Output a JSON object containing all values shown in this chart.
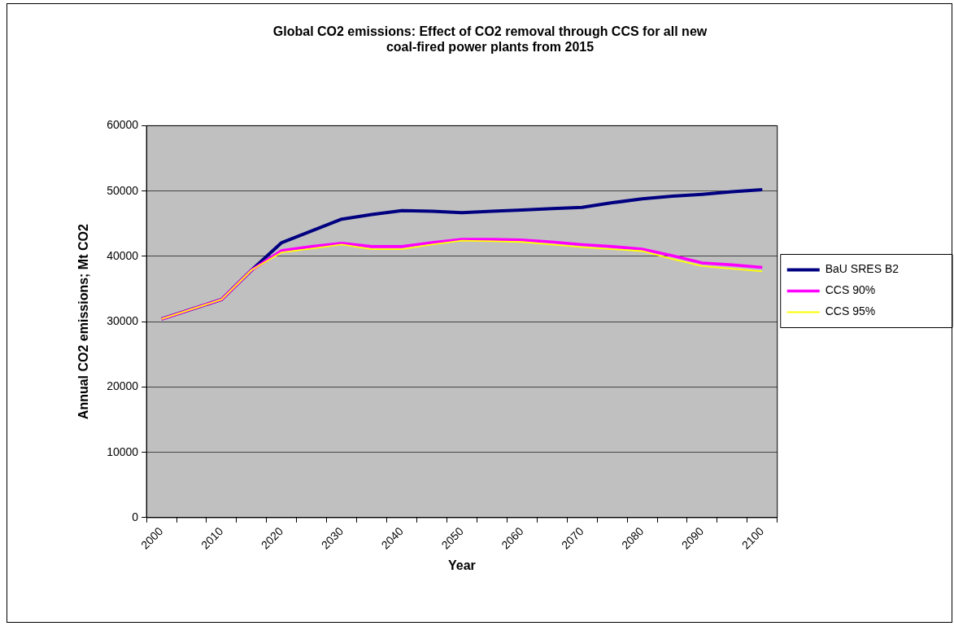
{
  "chart_data": {
    "type": "line",
    "title": "Global CO2 emissions: Effect of CO2 removal through CCS for all new coal-fired power plants from 2015",
    "xlabel": "Year",
    "ylabel": "Annual CO2 emissions; Mt CO2",
    "categories": [
      "2000",
      null,
      "2010",
      null,
      "2020",
      null,
      "2030",
      null,
      "2040",
      null,
      "2050",
      null,
      "2060",
      null,
      "2070",
      null,
      "2080",
      null,
      "2090",
      null,
      "2100"
    ],
    "series": [
      {
        "name": "BaU SRES B2",
        "color": "#000080",
        "values": [
          30400,
          31900,
          33400,
          37900,
          42100,
          43900,
          45700,
          46400,
          47000,
          46900,
          46700,
          46900,
          47100,
          47300,
          47500,
          48200,
          48800,
          49200,
          49500,
          49900,
          50200
        ]
      },
      {
        "name": "CCS 90%",
        "color": "#ff00ff",
        "values": [
          30400,
          31900,
          33400,
          37900,
          40900,
          41500,
          42000,
          41500,
          41500,
          42100,
          42600,
          42600,
          42500,
          42200,
          41800,
          41500,
          41100,
          40100,
          39000,
          38700,
          38300
        ]
      },
      {
        "name": "CCS 95%",
        "color": "#ffff00",
        "values": [
          30400,
          31900,
          33400,
          37900,
          40600,
          41200,
          41800,
          41100,
          41100,
          41800,
          42400,
          42300,
          42200,
          41800,
          41400,
          41100,
          40800,
          39600,
          38500,
          38100,
          37700
        ]
      }
    ],
    "ylim": [
      0,
      60000
    ],
    "yticks": [
      0,
      10000,
      20000,
      30000,
      40000,
      50000,
      60000
    ],
    "grid": "y",
    "legend": "right",
    "marker": "none"
  }
}
